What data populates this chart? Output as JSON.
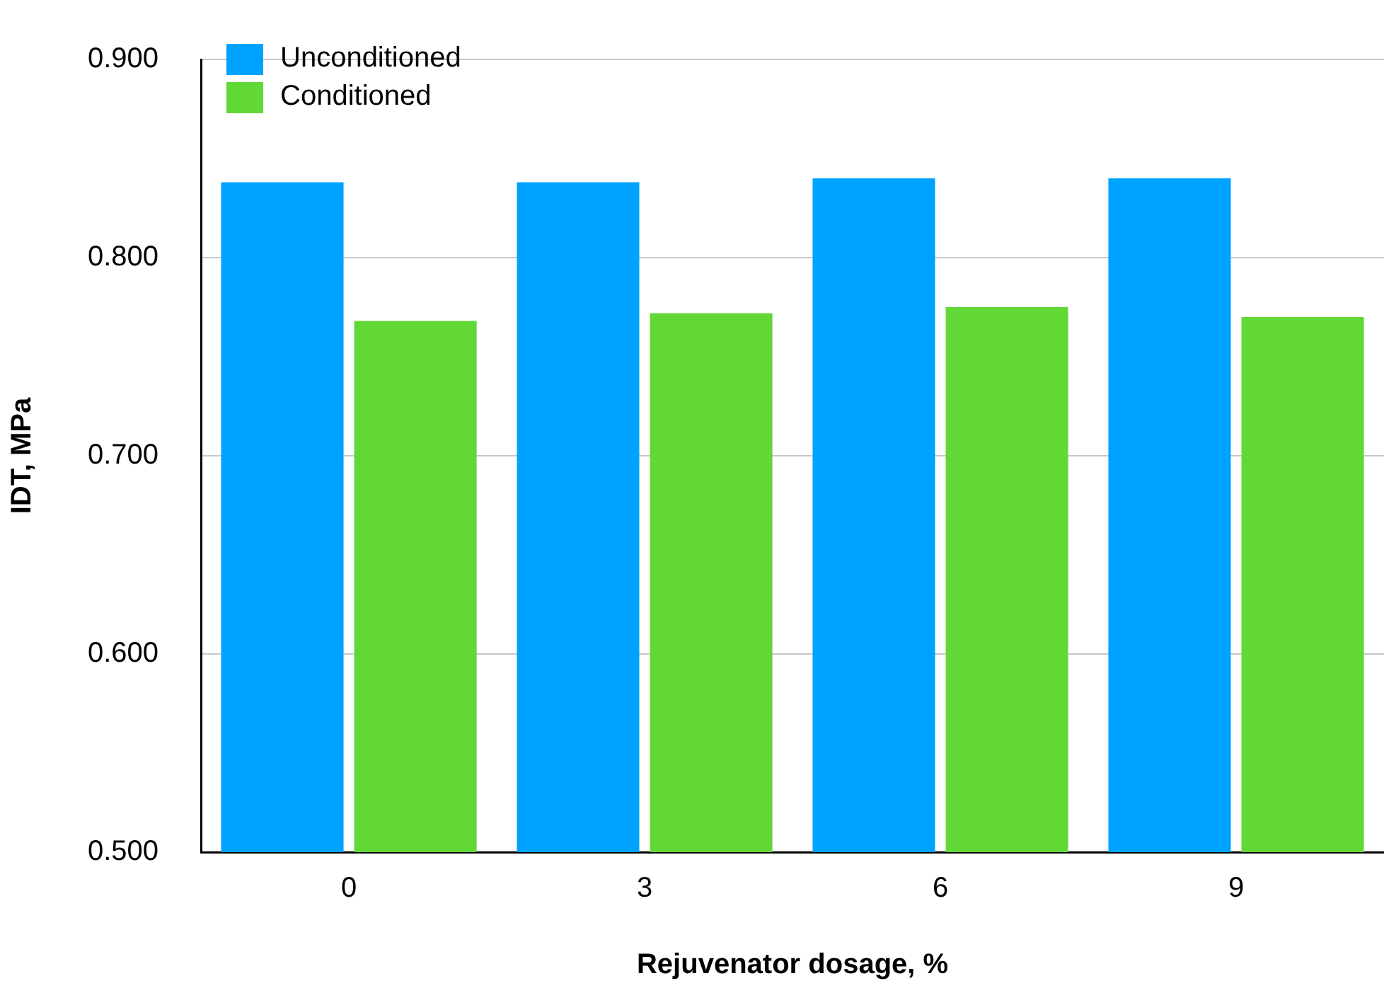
{
  "chart_data": {
    "type": "bar",
    "xlabel": "Rejuvenator dosage, %",
    "ylabel": "IDT, MPa",
    "categories": [
      "0",
      "3",
      "6",
      "9"
    ],
    "series": [
      {
        "name": "Unconditioned",
        "color": "#00a2ff",
        "values": [
          0.838,
          0.838,
          0.84,
          0.84
        ]
      },
      {
        "name": "Conditioned",
        "color": "#61d836",
        "values": [
          0.768,
          0.772,
          0.775,
          0.77
        ]
      }
    ],
    "ylim": [
      0.5,
      0.9
    ],
    "yticks": [
      {
        "value": 0.5,
        "label": "0.500"
      },
      {
        "value": 0.6,
        "label": "0.600"
      },
      {
        "value": 0.7,
        "label": "0.700"
      },
      {
        "value": 0.8,
        "label": "0.800"
      },
      {
        "value": 0.9,
        "label": "0.900"
      }
    ],
    "grid": "y",
    "legend": "top left"
  }
}
